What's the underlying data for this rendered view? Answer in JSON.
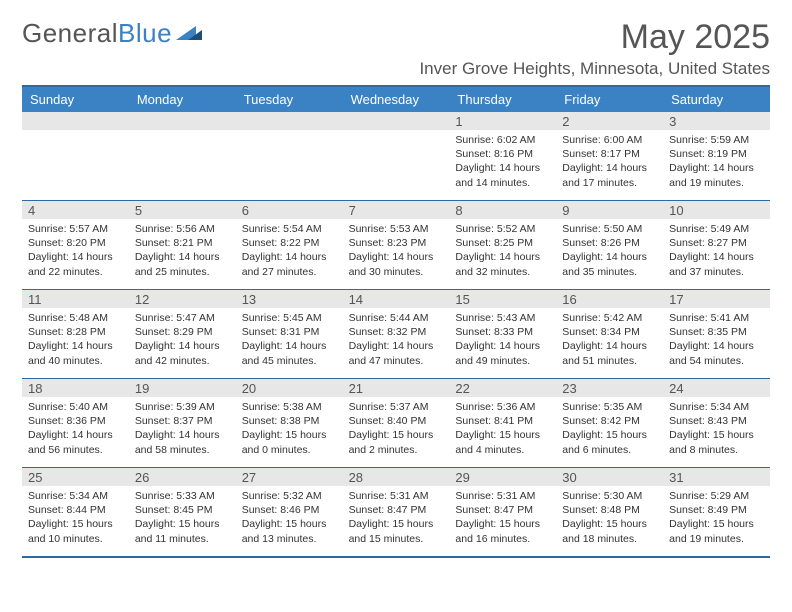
{
  "branding": {
    "logo_text_1": "General",
    "logo_text_2": "Blue",
    "logo_color_gray": "#555555",
    "logo_color_blue": "#3b82c4"
  },
  "header": {
    "month_title": "May 2025",
    "location": "Inver Grove Heights, Minnesota, United States"
  },
  "colors": {
    "header_bg": "#3b82c4",
    "header_text": "#ffffff",
    "daynum_bg": "#e7e7e7",
    "rule": "#2b6aa3",
    "body_text": "#333333"
  },
  "day_names": [
    "Sunday",
    "Monday",
    "Tuesday",
    "Wednesday",
    "Thursday",
    "Friday",
    "Saturday"
  ],
  "weeks": [
    [
      {
        "num": "",
        "lines": []
      },
      {
        "num": "",
        "lines": []
      },
      {
        "num": "",
        "lines": []
      },
      {
        "num": "",
        "lines": []
      },
      {
        "num": "1",
        "lines": [
          "Sunrise: 6:02 AM",
          "Sunset: 8:16 PM",
          "Daylight: 14 hours and 14 minutes."
        ]
      },
      {
        "num": "2",
        "lines": [
          "Sunrise: 6:00 AM",
          "Sunset: 8:17 PM",
          "Daylight: 14 hours and 17 minutes."
        ]
      },
      {
        "num": "3",
        "lines": [
          "Sunrise: 5:59 AM",
          "Sunset: 8:19 PM",
          "Daylight: 14 hours and 19 minutes."
        ]
      }
    ],
    [
      {
        "num": "4",
        "lines": [
          "Sunrise: 5:57 AM",
          "Sunset: 8:20 PM",
          "Daylight: 14 hours and 22 minutes."
        ]
      },
      {
        "num": "5",
        "lines": [
          "Sunrise: 5:56 AM",
          "Sunset: 8:21 PM",
          "Daylight: 14 hours and 25 minutes."
        ]
      },
      {
        "num": "6",
        "lines": [
          "Sunrise: 5:54 AM",
          "Sunset: 8:22 PM",
          "Daylight: 14 hours and 27 minutes."
        ]
      },
      {
        "num": "7",
        "lines": [
          "Sunrise: 5:53 AM",
          "Sunset: 8:23 PM",
          "Daylight: 14 hours and 30 minutes."
        ]
      },
      {
        "num": "8",
        "lines": [
          "Sunrise: 5:52 AM",
          "Sunset: 8:25 PM",
          "Daylight: 14 hours and 32 minutes."
        ]
      },
      {
        "num": "9",
        "lines": [
          "Sunrise: 5:50 AM",
          "Sunset: 8:26 PM",
          "Daylight: 14 hours and 35 minutes."
        ]
      },
      {
        "num": "10",
        "lines": [
          "Sunrise: 5:49 AM",
          "Sunset: 8:27 PM",
          "Daylight: 14 hours and 37 minutes."
        ]
      }
    ],
    [
      {
        "num": "11",
        "lines": [
          "Sunrise: 5:48 AM",
          "Sunset: 8:28 PM",
          "Daylight: 14 hours and 40 minutes."
        ]
      },
      {
        "num": "12",
        "lines": [
          "Sunrise: 5:47 AM",
          "Sunset: 8:29 PM",
          "Daylight: 14 hours and 42 minutes."
        ]
      },
      {
        "num": "13",
        "lines": [
          "Sunrise: 5:45 AM",
          "Sunset: 8:31 PM",
          "Daylight: 14 hours and 45 minutes."
        ]
      },
      {
        "num": "14",
        "lines": [
          "Sunrise: 5:44 AM",
          "Sunset: 8:32 PM",
          "Daylight: 14 hours and 47 minutes."
        ]
      },
      {
        "num": "15",
        "lines": [
          "Sunrise: 5:43 AM",
          "Sunset: 8:33 PM",
          "Daylight: 14 hours and 49 minutes."
        ]
      },
      {
        "num": "16",
        "lines": [
          "Sunrise: 5:42 AM",
          "Sunset: 8:34 PM",
          "Daylight: 14 hours and 51 minutes."
        ]
      },
      {
        "num": "17",
        "lines": [
          "Sunrise: 5:41 AM",
          "Sunset: 8:35 PM",
          "Daylight: 14 hours and 54 minutes."
        ]
      }
    ],
    [
      {
        "num": "18",
        "lines": [
          "Sunrise: 5:40 AM",
          "Sunset: 8:36 PM",
          "Daylight: 14 hours and 56 minutes."
        ]
      },
      {
        "num": "19",
        "lines": [
          "Sunrise: 5:39 AM",
          "Sunset: 8:37 PM",
          "Daylight: 14 hours and 58 minutes."
        ]
      },
      {
        "num": "20",
        "lines": [
          "Sunrise: 5:38 AM",
          "Sunset: 8:38 PM",
          "Daylight: 15 hours and 0 minutes."
        ]
      },
      {
        "num": "21",
        "lines": [
          "Sunrise: 5:37 AM",
          "Sunset: 8:40 PM",
          "Daylight: 15 hours and 2 minutes."
        ]
      },
      {
        "num": "22",
        "lines": [
          "Sunrise: 5:36 AM",
          "Sunset: 8:41 PM",
          "Daylight: 15 hours and 4 minutes."
        ]
      },
      {
        "num": "23",
        "lines": [
          "Sunrise: 5:35 AM",
          "Sunset: 8:42 PM",
          "Daylight: 15 hours and 6 minutes."
        ]
      },
      {
        "num": "24",
        "lines": [
          "Sunrise: 5:34 AM",
          "Sunset: 8:43 PM",
          "Daylight: 15 hours and 8 minutes."
        ]
      }
    ],
    [
      {
        "num": "25",
        "lines": [
          "Sunrise: 5:34 AM",
          "Sunset: 8:44 PM",
          "Daylight: 15 hours and 10 minutes."
        ]
      },
      {
        "num": "26",
        "lines": [
          "Sunrise: 5:33 AM",
          "Sunset: 8:45 PM",
          "Daylight: 15 hours and 11 minutes."
        ]
      },
      {
        "num": "27",
        "lines": [
          "Sunrise: 5:32 AM",
          "Sunset: 8:46 PM",
          "Daylight: 15 hours and 13 minutes."
        ]
      },
      {
        "num": "28",
        "lines": [
          "Sunrise: 5:31 AM",
          "Sunset: 8:47 PM",
          "Daylight: 15 hours and 15 minutes."
        ]
      },
      {
        "num": "29",
        "lines": [
          "Sunrise: 5:31 AM",
          "Sunset: 8:47 PM",
          "Daylight: 15 hours and 16 minutes."
        ]
      },
      {
        "num": "30",
        "lines": [
          "Sunrise: 5:30 AM",
          "Sunset: 8:48 PM",
          "Daylight: 15 hours and 18 minutes."
        ]
      },
      {
        "num": "31",
        "lines": [
          "Sunrise: 5:29 AM",
          "Sunset: 8:49 PM",
          "Daylight: 15 hours and 19 minutes."
        ]
      }
    ]
  ]
}
